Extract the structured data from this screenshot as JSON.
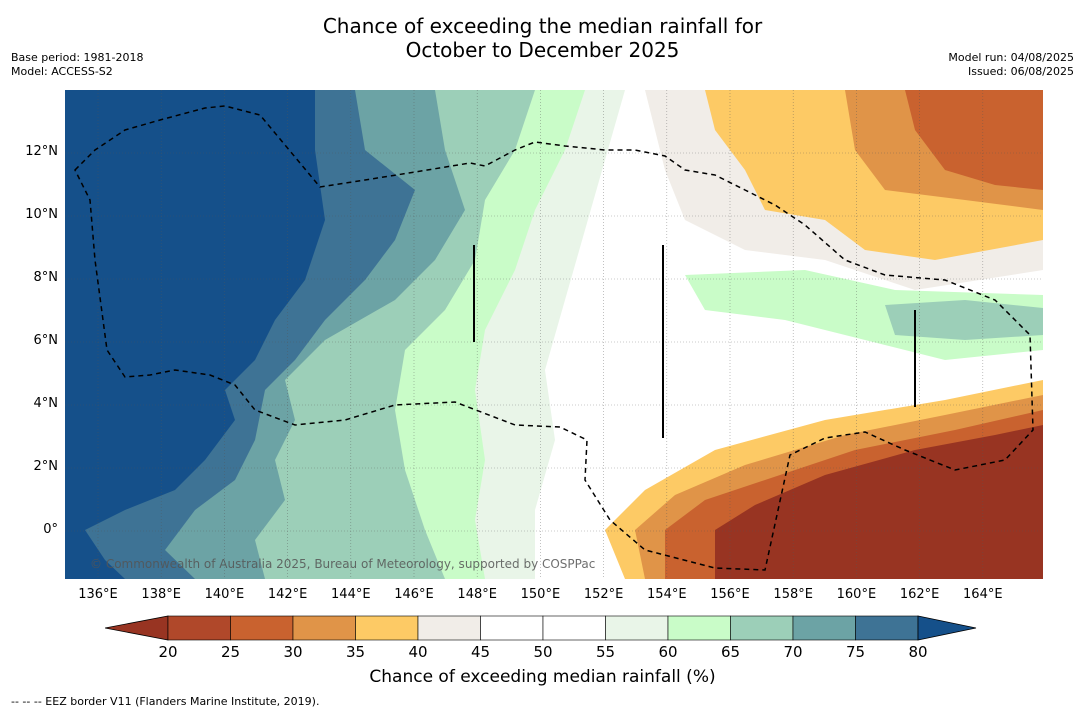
{
  "title": {
    "line1": "Chance of exceeding the median rainfall for",
    "line2": "October to December 2025"
  },
  "meta_left": {
    "base_period": "Base period: 1981-2018",
    "model": "Model: ACCESS-S2"
  },
  "meta_right": {
    "model_run": "Model run: 04/08/2025",
    "issued": "Issued: 06/08/2025"
  },
  "map": {
    "credit": "© Commonwealth of Australia 2025, Bureau of Meteorology, supported by COSPPac",
    "x_ticks": [
      "136°E",
      "138°E",
      "140°E",
      "142°E",
      "144°E",
      "146°E",
      "148°E",
      "150°E",
      "152°E",
      "154°E",
      "156°E",
      "158°E",
      "160°E",
      "162°E",
      "164°E"
    ],
    "y_ticks": [
      "12°N",
      "10°N",
      "8°N",
      "6°N",
      "4°N",
      "2°N",
      "0°"
    ]
  },
  "colorbar": {
    "ticks": [
      "20",
      "25",
      "30",
      "35",
      "40",
      "45",
      "50",
      "55",
      "60",
      "65",
      "70",
      "75",
      "80"
    ],
    "colors": [
      "#983422",
      "#b0482a",
      "#c9622f",
      "#e09448",
      "#fdca65",
      "#f1ede8",
      "#ffffff",
      "#ffffff",
      "#e9f5e8",
      "#c9fcc8",
      "#9ccfb8",
      "#6ca3a5",
      "#3e7395",
      "#15508a"
    ],
    "title": "Chance of exceeding median rainfall (%)"
  },
  "footer": "--  --  -- EEZ border V11 (Flanders Marine Institute, 2019)."
}
